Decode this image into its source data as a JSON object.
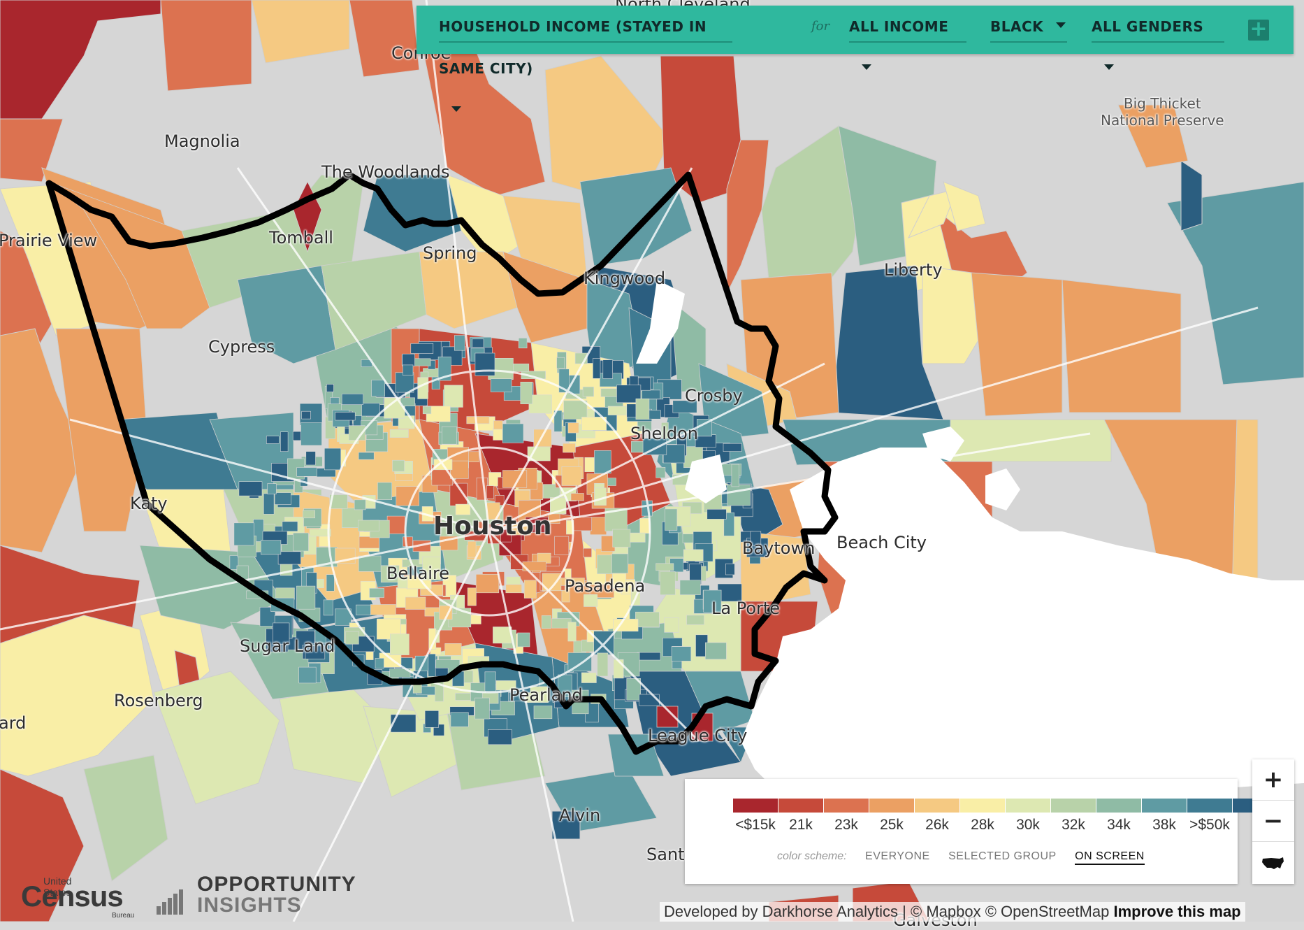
{
  "toolbar": {
    "metric": "HOUSEHOLD INCOME (STAYED IN SAME CITY)",
    "for_label": "for",
    "income": "ALL INCOME",
    "race": "BLACK",
    "gender": "ALL GENDERS",
    "add_icon": "plus-icon"
  },
  "places": {
    "conroe": "Conroe",
    "north_cleveland": "North Cleveland",
    "magnolia": "Magnolia",
    "the_woodlands": "The Woodlands",
    "prairie_view": "Prairie View",
    "tomball": "Tomball",
    "spring": "Spring",
    "kingwood": "Kingwood",
    "big_thicket_1": "Big Thicket",
    "big_thicket_2": "National Preserve",
    "liberty": "Liberty",
    "cypress": "Cypress",
    "crosby": "Crosby",
    "sheldon": "Sheldon",
    "katy": "Katy",
    "houston": "Houston",
    "baytown": "Baytown",
    "beach_city": "Beach City",
    "bellaire": "Bellaire",
    "pasadena": "Pasadena",
    "la_porte": "La Porte",
    "sugar_land": "Sugar Land",
    "rosenberg": "Rosenberg",
    "richmond": "ard",
    "pearland": "Pearland",
    "league_city": "League City",
    "alvin": "Alvin",
    "santa_fe": "Sant",
    "galveston": "Galveston"
  },
  "legend": {
    "colors": [
      "#a9262d",
      "#c64a3a",
      "#dc7250",
      "#eba063",
      "#f5c982",
      "#f9eea6",
      "#dde8b2",
      "#b8d2a9",
      "#8fbba5",
      "#5f9ba3",
      "#3f7b92",
      "#2b5e80"
    ],
    "ticks": [
      "<$15k",
      "21k",
      "23k",
      "25k",
      "26k",
      "28k",
      "30k",
      "32k",
      "34k",
      "38k",
      ">$50k"
    ],
    "scheme_label": "color scheme:",
    "schemes": [
      "EVERYONE",
      "SELECTED GROUP",
      "ON SCREEN"
    ],
    "active_scheme": "ON SCREEN"
  },
  "zoom": {
    "in": "+",
    "out": "−",
    "us_icon": "usa-map-icon"
  },
  "footer": {
    "census_small": "United States",
    "census_big": "Census",
    "census_bureau": "Bureau",
    "oi_line1": "OPPORTUNITY",
    "oi_line2": "INSIGHTS",
    "attribution": "Developed by Darkhorse Analytics | © Mapbox © OpenStreetMap",
    "improve": "Improve this map"
  }
}
